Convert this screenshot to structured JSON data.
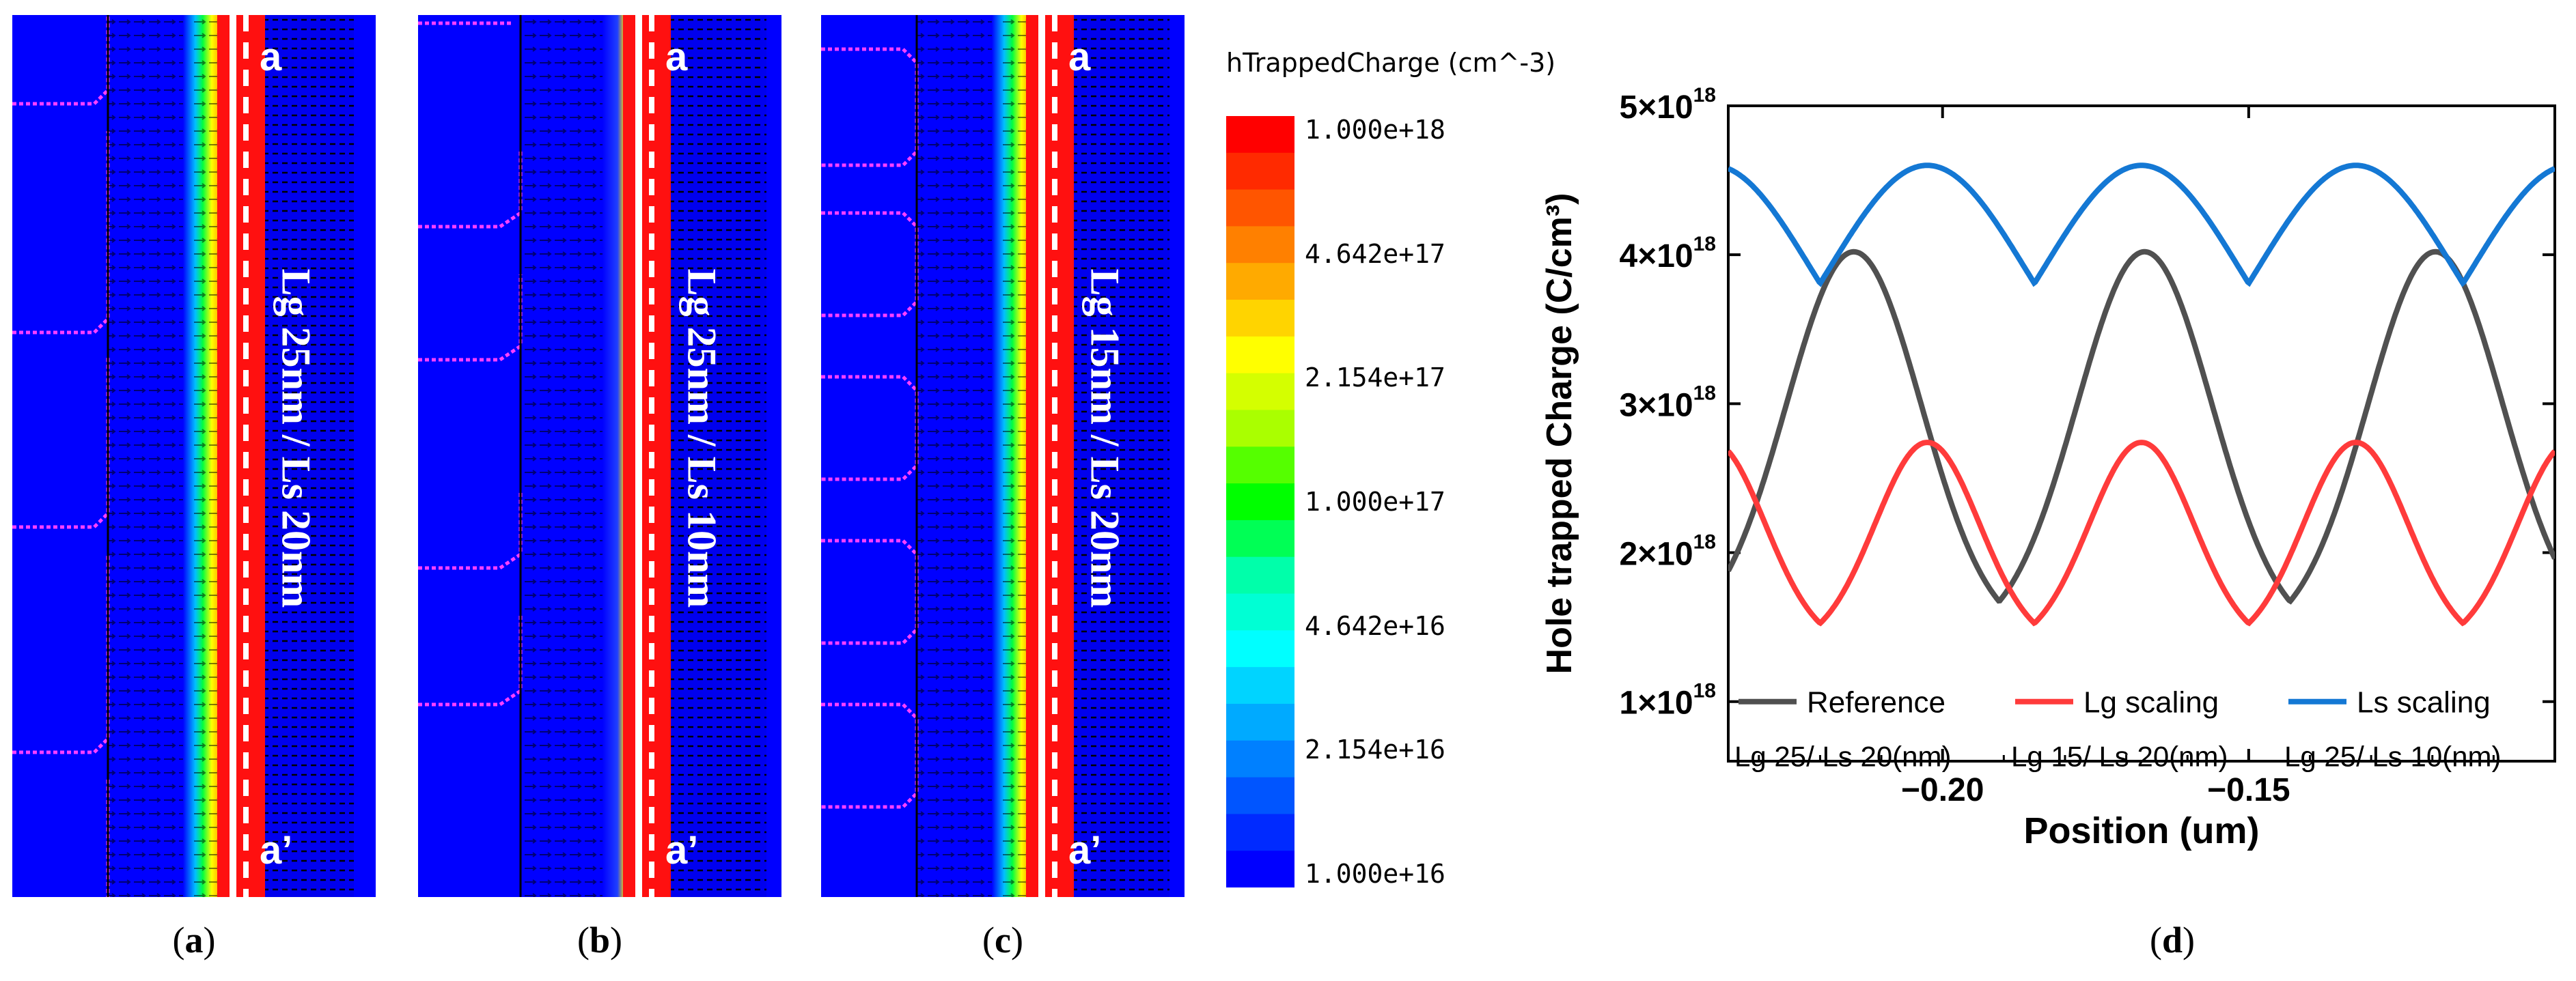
{
  "panels": [
    {
      "id": "a",
      "caption_letter": "a",
      "top_label": "a",
      "bottom_label": "a’",
      "device_label": "Lg 25nm / Ls 20nm"
    },
    {
      "id": "b",
      "caption_letter": "b",
      "top_label": "a",
      "bottom_label": "a’",
      "device_label": "Lg 25nm / Ls 10nm"
    },
    {
      "id": "c",
      "caption_letter": "c",
      "top_label": "a",
      "bottom_label": "a’",
      "device_label": "Lg 15nm / Ls 20nm"
    }
  ],
  "colorbar": {
    "title": "hTrappedCharge (cm^-3)",
    "ticks": [
      "1.000e+18",
      "4.642e+17",
      "2.154e+17",
      "1.000e+17",
      "4.642e+16",
      "2.154e+16",
      "1.000e+16"
    ],
    "colors": [
      "#ff0000",
      "#ff2a00",
      "#ff5500",
      "#ff8000",
      "#ffaa00",
      "#ffd400",
      "#ffff00",
      "#d4ff00",
      "#aaff00",
      "#55ff00",
      "#00ff00",
      "#00ff55",
      "#00ffaa",
      "#00ffd4",
      "#00ffff",
      "#00d4ff",
      "#00aaff",
      "#0080ff",
      "#0055ff",
      "#002aff",
      "#0000ff"
    ]
  },
  "chart_data": {
    "type": "line",
    "title": "",
    "xlabel": "Position (um)",
    "ylabel": "Hole trapped Charge (C/cm³)",
    "xlim": [
      -0.235,
      -0.1
    ],
    "ylim": [
      0.6,
      5.0
    ],
    "y_exponent_label": "×10",
    "y_exponent": "18",
    "xticks": [
      -0.2,
      -0.15
    ],
    "xtick_labels": [
      "−0.20",
      "−0.15"
    ],
    "yticks": [
      1,
      2,
      3,
      4,
      5
    ],
    "ytick_labels": [
      "1",
      "2",
      "3",
      "4",
      "5"
    ],
    "caption_letter": "d",
    "series": [
      {
        "name": "Reference",
        "sublabel": "Lg 25/ Ls 20(nm)",
        "color": "#505050",
        "base": 1.42,
        "peak": 4.02,
        "period": 0.0475,
        "phase": -0.2145,
        "width": 0.011
      },
      {
        "name": "Lg scaling",
        "sublabel": "Lg 15/ Ls 20(nm)",
        "color": "#ff3b3b",
        "base": 1.36,
        "peak": 2.74,
        "period": 0.035,
        "phase": -0.2025,
        "width": 0.0085
      },
      {
        "name": "Ls scaling",
        "sublabel": "Lg 25/ Ls 10(nm)",
        "color": "#1478d4",
        "base": 2.84,
        "peak": 4.6,
        "period": 0.035,
        "phase": -0.2025,
        "width": 0.016
      }
    ]
  }
}
